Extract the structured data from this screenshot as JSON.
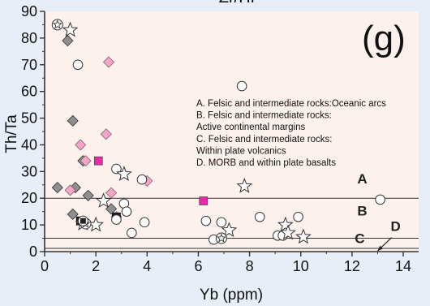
{
  "chart_data": {
    "type": "scatter",
    "title": "Zr/Hf",
    "panel_label": "(g)",
    "xlabel": "Yb (ppm)",
    "ylabel": "Th/Ta",
    "xlim": [
      0,
      14.6
    ],
    "ylim": [
      0,
      90
    ],
    "xticks": [
      "0",
      "2",
      "4",
      "6",
      "8",
      "10",
      "12",
      "14"
    ],
    "yticks": [
      "0",
      "10",
      "20",
      "30",
      "40",
      "50",
      "60",
      "70",
      "80",
      "90"
    ],
    "grid": false,
    "colors": {
      "plot_bg": "#fdf1ee",
      "page_bg": "#e8eef7",
      "pink": "#f4a6c8",
      "magenta": "#e62ba6",
      "gray_diamond": "#8f8f8f",
      "dark_square": "#222222"
    },
    "boundaries": [
      {
        "y": 20,
        "label": "A"
      },
      {
        "y": 5,
        "label": "B"
      },
      {
        "y": 1.2,
        "label": "C"
      }
    ],
    "field_labels": [
      {
        "text": "A",
        "x": 12.4,
        "y": 25.5
      },
      {
        "text": "B",
        "x": 12.4,
        "y": 13.5
      },
      {
        "text": "C",
        "x": 12.3,
        "y": 3.2
      },
      {
        "text": "D",
        "x": 13.7,
        "y": 7.8
      }
    ],
    "legend_lines": [
      "A. Felsic and intermediate rocks:Oceanic arcs",
      "B. Felsic and intermediate rocks:",
      "Active continental margins",
      "C. Felsic and intermediate rocks:",
      "Within plate volcanics",
      "D. MORB and within plate basalts"
    ],
    "series": [
      {
        "marker": "diamond_gray",
        "points": [
          [
            0.9,
            79
          ],
          [
            1.1,
            49
          ],
          [
            1.5,
            34
          ],
          [
            0.5,
            24
          ],
          [
            1.2,
            24
          ],
          [
            1.7,
            21
          ],
          [
            1.1,
            14
          ],
          [
            2.6,
            16
          ]
        ]
      },
      {
        "marker": "diamond_pink",
        "points": [
          [
            2.5,
            71
          ],
          [
            2.4,
            44
          ],
          [
            1.4,
            40
          ],
          [
            1.6,
            34
          ],
          [
            2.6,
            22
          ],
          [
            1.0,
            23
          ],
          [
            4.0,
            26.5
          ],
          [
            2.8,
            13
          ]
        ]
      },
      {
        "marker": "square_magenta",
        "points": [
          [
            2.1,
            34
          ],
          [
            6.2,
            19
          ]
        ]
      },
      {
        "marker": "square_dark",
        "points": [
          [
            1.4,
            11.5
          ],
          [
            2.8,
            13
          ]
        ]
      },
      {
        "marker": "circle",
        "points": [
          [
            1.3,
            70
          ],
          [
            7.7,
            62
          ],
          [
            2.8,
            31
          ],
          [
            2.8,
            12
          ],
          [
            3.1,
            18
          ],
          [
            3.2,
            15
          ],
          [
            3.4,
            7
          ],
          [
            3.8,
            27
          ],
          [
            3.9,
            11
          ],
          [
            6.3,
            11.5
          ],
          [
            6.6,
            4.5
          ],
          [
            6.9,
            11
          ],
          [
            8.4,
            13
          ],
          [
            9.1,
            6
          ],
          [
            9.3,
            6
          ],
          [
            9.9,
            13
          ],
          [
            13.1,
            19.5
          ]
        ]
      },
      {
        "marker": "star",
        "points": [
          [
            1.0,
            83
          ],
          [
            3.1,
            29
          ],
          [
            2.3,
            19
          ],
          [
            2.0,
            10
          ],
          [
            1.5,
            10.5
          ],
          [
            7.8,
            24.5
          ],
          [
            7.2,
            8
          ],
          [
            9.4,
            10
          ],
          [
            9.5,
            7
          ],
          [
            10.1,
            5.5
          ]
        ]
      },
      {
        "marker": "circle_star",
        "points": [
          [
            0.5,
            85
          ],
          [
            1.6,
            10.5
          ],
          [
            6.9,
            5
          ]
        ]
      },
      {
        "marker": "circle_square",
        "points": [
          [
            1.5,
            11.5
          ]
        ]
      }
    ]
  }
}
